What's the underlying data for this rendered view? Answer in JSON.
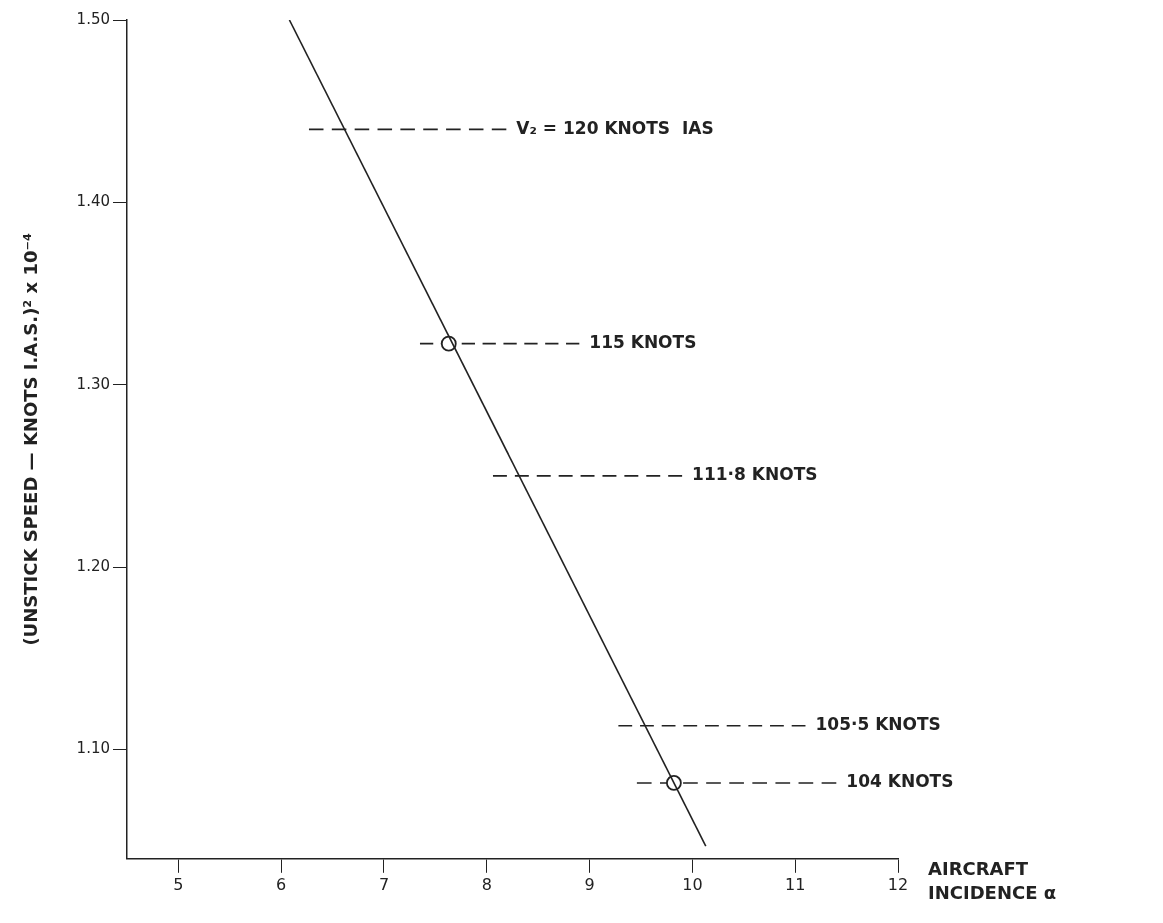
{
  "chart_data": {
    "type": "line",
    "xlabel": "AIRCRAFT INCIDENCE α",
    "ylabel": "(UNSTICK SPEED — KNOTS I.A.S.)² x 10⁻⁴",
    "xlim": [
      4.5,
      12
    ],
    "xticks": [
      5,
      6,
      7,
      8,
      9,
      10,
      11,
      12
    ],
    "ylim": [
      1.04,
      1.5
    ],
    "yticks": [
      {
        "value": 1.1,
        "label": "1.10"
      },
      {
        "value": 1.2,
        "label": "1.20"
      },
      {
        "value": 1.3,
        "label": "1.30"
      },
      {
        "value": 1.4,
        "label": "1.40"
      },
      {
        "value": 1.5,
        "label": "1.50"
      }
    ],
    "grid": false,
    "legend": false,
    "series": [
      {
        "type": "line",
        "color": "#222222",
        "x": [
          6.08,
          10.13
        ],
        "values": [
          1.5,
          1.047
        ],
        "marker": "none",
        "line_style": "solid"
      },
      {
        "type": "scatter",
        "color": "#222222",
        "x": [
          7.63,
          9.82
        ],
        "values": [
          1.3225,
          1.0816
        ],
        "marker": "circle"
      },
      {
        "type": "line",
        "name": "V₂ = 120 KNOTS  IAS",
        "color": "#222222",
        "x": [
          6.27,
          8.19
        ],
        "values": [
          1.44,
          1.44
        ],
        "marker": "none",
        "line_style": "dashed"
      },
      {
        "type": "line",
        "name": "115 KNOTS",
        "color": "#222222",
        "x": [
          7.35,
          8.9
        ],
        "values": [
          1.3225,
          1.3225
        ],
        "marker": "none",
        "line_style": "dashed"
      },
      {
        "type": "line",
        "name": "111·8 KNOTS",
        "color": "#222222",
        "x": [
          8.06,
          9.9
        ],
        "values": [
          1.25,
          1.25
        ],
        "marker": "none",
        "line_style": "dashed"
      },
      {
        "type": "line",
        "name": "105·5 KNOTS",
        "color": "#222222",
        "x": [
          9.28,
          11.1
        ],
        "values": [
          1.113,
          1.113
        ],
        "marker": "none",
        "line_style": "dashed"
      },
      {
        "type": "line",
        "name": "104 KNOTS",
        "color": "#222222",
        "x": [
          9.46,
          11.4
        ],
        "values": [
          1.0816,
          1.0816
        ],
        "marker": "none",
        "line_style": "dashed"
      }
    ]
  }
}
